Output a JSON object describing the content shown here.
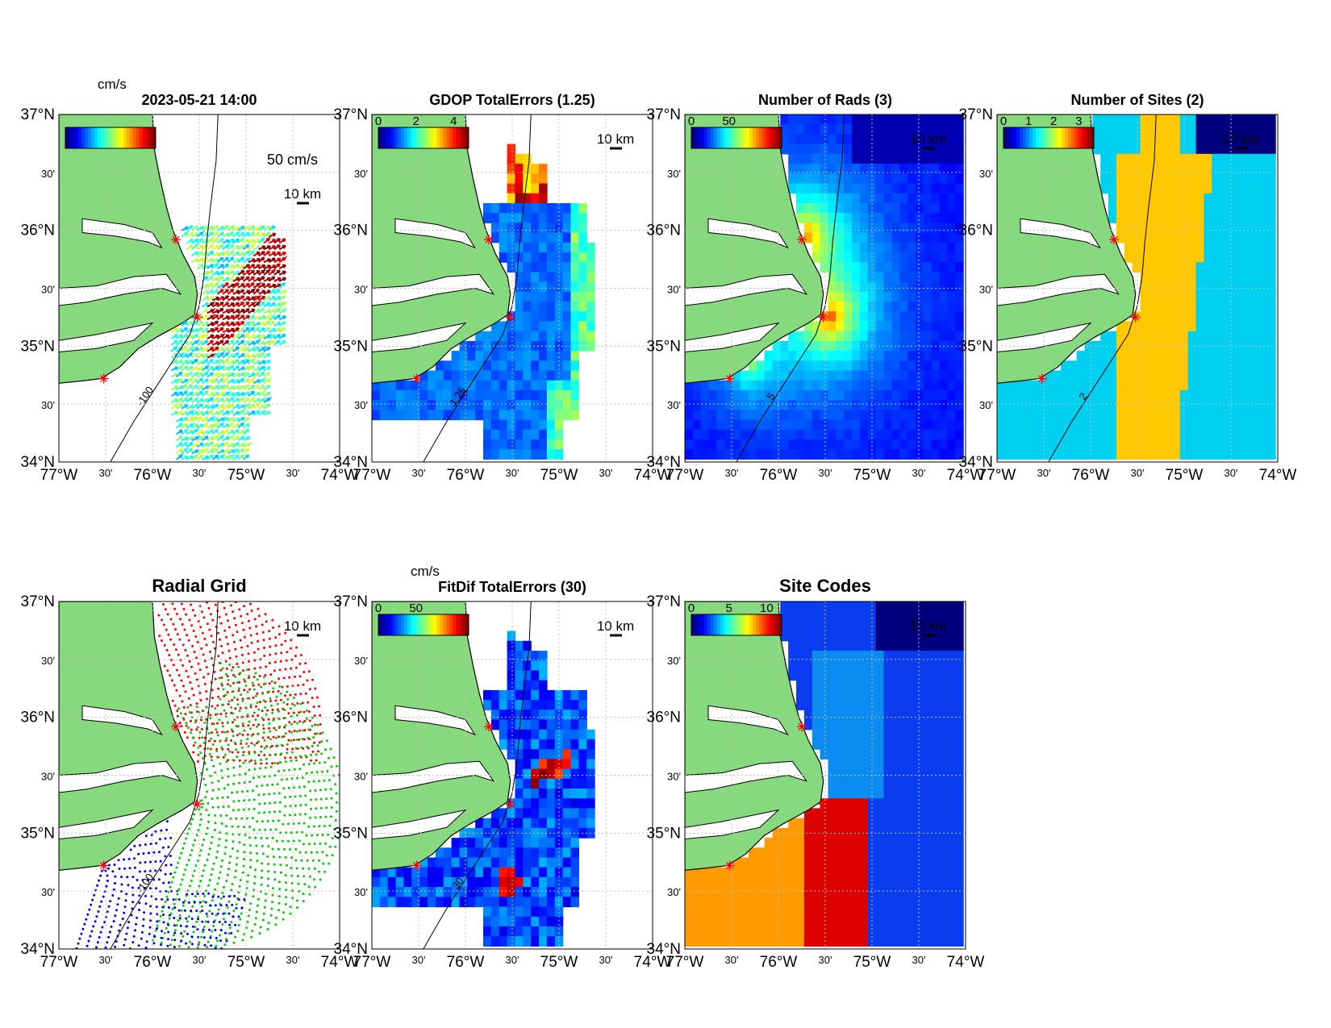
{
  "figure_title_hint": "",
  "panels": [
    {
      "key": "vectors",
      "title": "2023-05-21 14:00",
      "colorbar": {
        "unit": "cm/s",
        "ticks": []
      },
      "show_scale_arrow": true,
      "scale_arrow_label": "50 cm/s",
      "scale_bar_label": "10 km",
      "overlay_label": "",
      "contour_label": "-100",
      "kind": "vectors"
    },
    {
      "key": "gdop",
      "title": "GDOP TotalErrors (1.25)",
      "colorbar": {
        "unit": "",
        "ticks": [
          "0",
          "2",
          "4"
        ]
      },
      "scale_bar_label": "10 km",
      "contour_label": "1.25",
      "kind": "grid"
    },
    {
      "key": "nrads",
      "title": "Number of Rads (3)",
      "colorbar": {
        "unit": "",
        "ticks": [
          "0",
          "50"
        ]
      },
      "scale_bar_label": "10 km",
      "contour_label": "5",
      "kind": "grid"
    },
    {
      "key": "nsites",
      "title": "Number of Sites (2)",
      "colorbar": {
        "unit": "",
        "ticks": [
          "0",
          "1",
          "2",
          "3"
        ]
      },
      "scale_bar_label": "10 km",
      "contour_label": "2",
      "kind": "grid"
    },
    {
      "key": "radialgrid",
      "title": "Radial Grid",
      "colorbar": null,
      "scale_bar_label": "10 km",
      "contour_label": "-100",
      "kind": "dots"
    },
    {
      "key": "fitdif",
      "title": "FitDif TotalErrors (30)",
      "colorbar": {
        "unit": "cm/s",
        "ticks": [
          "0",
          "50"
        ]
      },
      "scale_bar_label": "10 km",
      "contour_label": "30",
      "kind": "grid"
    },
    {
      "key": "sitecodes",
      "title": "Site Codes",
      "colorbar": {
        "unit": "",
        "ticks": [
          "0",
          "5",
          "10"
        ]
      },
      "scale_bar_label": "10 km",
      "contour_label": "",
      "kind": "grid"
    }
  ],
  "axes": {
    "lat_ticks": [
      "37°N",
      "30'",
      "36°N",
      "30'",
      "35°N",
      "30'",
      "34°N"
    ],
    "lon_ticks": [
      "77°W",
      "30'",
      "76°W",
      "30'",
      "75°W",
      "30'",
      "74°W"
    ]
  },
  "colors": {
    "land": "#86d97d",
    "coast": "#000000",
    "site_marker": "#ff0000",
    "grid_line": "#bfbfbf",
    "dots_site1": "#ff0000",
    "dots_site2": "#00cc00",
    "dots_site3": "#0000ff",
    "nsites_1": "#00d0f0",
    "nsites_2": "#ffc800",
    "nsites_3": "#8b0000",
    "nsites_0": "#00007f",
    "sitecode_a": "#0a3cf0",
    "sitecode_b": "#0a8cf0",
    "sitecode_c": "#ff9a00",
    "sitecode_d": "#dc0000",
    "sitecode_e": "#00007f"
  }
}
